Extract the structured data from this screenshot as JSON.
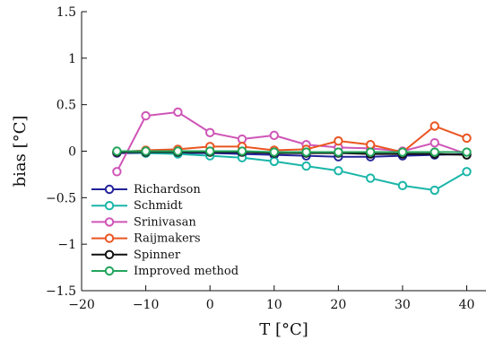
{
  "chart_data": {
    "type": "line",
    "title": "",
    "xlabel": "T [°C]",
    "ylabel": "bias [°C]",
    "xlim": [
      -20,
      43
    ],
    "ylim": [
      -1.5,
      1.5
    ],
    "xticks": [
      -20,
      -10,
      0,
      10,
      20,
      30,
      40
    ],
    "yticks": [
      -1.5,
      -1,
      -0.5,
      0,
      0.5,
      1,
      1.5
    ],
    "xtick_labels": [
      "−20",
      "−10",
      "0",
      "10",
      "20",
      "30",
      "40"
    ],
    "ytick_labels": [
      "−1.5",
      "−1",
      "−0.5",
      "0",
      "0.5",
      "1",
      "1.5"
    ],
    "x": [
      -14.5,
      -10,
      -5,
      0,
      5,
      10,
      15,
      20,
      25,
      30,
      35,
      40
    ],
    "grid": false,
    "legend_position": "bottom-left",
    "series": [
      {
        "name": "Richardson",
        "color": "#23239a",
        "values": [
          -0.02,
          -0.02,
          -0.02,
          -0.02,
          -0.03,
          -0.04,
          -0.05,
          -0.06,
          -0.06,
          -0.05,
          -0.04,
          -0.03
        ]
      },
      {
        "name": "Schmidt",
        "color": "#1ab6a8",
        "values": [
          -0.01,
          -0.02,
          -0.03,
          -0.05,
          -0.07,
          -0.11,
          -0.16,
          -0.21,
          -0.29,
          -0.37,
          -0.42,
          -0.22
        ]
      },
      {
        "name": "Srinivasan",
        "color": "#cf56b7",
        "values": [
          -0.22,
          0.38,
          0.42,
          0.2,
          0.13,
          0.17,
          0.07,
          0.04,
          0.03,
          0.0,
          0.09,
          -0.03
        ]
      },
      {
        "name": "Raijmakers",
        "color": "#ea5522",
        "values": [
          -0.01,
          0.01,
          0.02,
          0.05,
          0.05,
          0.01,
          0.02,
          0.11,
          0.07,
          -0.01,
          0.27,
          0.14
        ]
      },
      {
        "name": "Spinner",
        "color": "#111111",
        "values": [
          -0.01,
          -0.01,
          -0.01,
          -0.01,
          -0.01,
          -0.02,
          -0.02,
          -0.02,
          -0.03,
          -0.03,
          -0.03,
          -0.04
        ]
      },
      {
        "name": "Improved method",
        "color": "#22a55c",
        "values": [
          0.0,
          0.0,
          0.0,
          0.0,
          0.0,
          -0.01,
          -0.01,
          -0.01,
          -0.01,
          -0.01,
          -0.01,
          -0.01
        ]
      }
    ]
  }
}
